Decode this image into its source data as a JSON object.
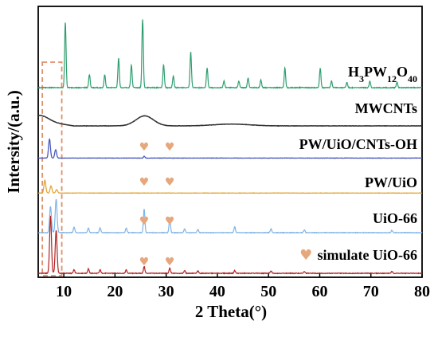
{
  "chart_data": {
    "type": "line",
    "title": "",
    "xlabel": "2 Theta(°)",
    "ylabel": "Intersity/(a.u.)",
    "xlim": [
      5,
      80
    ],
    "xticks": [
      10,
      20,
      30,
      40,
      50,
      60,
      70,
      80
    ],
    "y_ticks_shown": false,
    "marker_symbol": "♥",
    "marker_color": "#E6A77D",
    "highlight_box_color": "#E08F6A",
    "highlight_x_range": [
      5.8,
      9.6
    ],
    "series": [
      {
        "name": "simulate UiO-66",
        "label_color": "#D98B5F",
        "color": "#B22222",
        "baseline": 0.0,
        "peaks": [
          [
            7.4,
            1.0
          ],
          [
            8.5,
            0.75
          ],
          [
            12.0,
            0.06
          ],
          [
            14.8,
            0.08
          ],
          [
            17.1,
            0.06
          ],
          [
            22.2,
            0.06
          ],
          [
            25.7,
            0.12
          ],
          [
            30.7,
            0.09
          ],
          [
            33.6,
            0.05
          ],
          [
            36.2,
            0.04
          ],
          [
            43.4,
            0.05
          ],
          [
            50.5,
            0.04
          ],
          [
            57.0,
            0.03
          ],
          [
            74.1,
            0.03
          ]
        ],
        "markers": [
          25.7,
          30.7
        ]
      },
      {
        "name": "UiO-66",
        "label_color": "#000000",
        "color": "#7FB3E6",
        "baseline": 0.0,
        "peaks": [
          [
            7.4,
            0.55
          ],
          [
            8.5,
            0.7
          ],
          [
            12.0,
            0.12
          ],
          [
            14.8,
            0.1
          ],
          [
            17.1,
            0.1
          ],
          [
            22.2,
            0.1
          ],
          [
            25.7,
            0.5
          ],
          [
            30.7,
            0.3
          ],
          [
            33.6,
            0.08
          ],
          [
            36.2,
            0.07
          ],
          [
            43.4,
            0.12
          ],
          [
            50.5,
            0.08
          ],
          [
            57.0,
            0.06
          ],
          [
            74.1,
            0.05
          ]
        ],
        "markers": [
          25.7,
          30.7
        ]
      },
      {
        "name": "PW/UiO",
        "label_color": "#000000",
        "color": "#E0A02B",
        "baseline": 0.02,
        "peaks": [
          [
            6.3,
            0.45
          ],
          [
            7.5,
            0.25
          ],
          [
            8.6,
            0.12
          ]
        ],
        "markers": [
          25.7,
          30.7
        ]
      },
      {
        "name": "PW/UiO/CNTs-OH",
        "label_color": "#000000",
        "color": "#4B5BBF",
        "baseline": 0.02,
        "peaks": [
          [
            7.2,
            0.8
          ],
          [
            8.4,
            0.35
          ],
          [
            25.7,
            0.08
          ]
        ],
        "markers": [
          25.7,
          30.7
        ]
      },
      {
        "name": "MWCNTs",
        "label_color": "#000000",
        "color": "#333333",
        "baseline": 0.0,
        "peaks": [
          [
            5.5,
            0.25
          ],
          [
            25.8,
            0.45
          ],
          [
            42.8,
            0.08
          ]
        ],
        "markers": []
      },
      {
        "name": "H3PW12O40",
        "label_color": "#000000",
        "color": "#2E9E6E",
        "baseline": 0.0,
        "peaks": [
          [
            10.3,
            1.0
          ],
          [
            15.0,
            0.2
          ],
          [
            18.0,
            0.2
          ],
          [
            20.7,
            0.45
          ],
          [
            23.2,
            0.35
          ],
          [
            25.4,
            1.05
          ],
          [
            29.5,
            0.35
          ],
          [
            31.4,
            0.18
          ],
          [
            34.8,
            0.55
          ],
          [
            38.0,
            0.3
          ],
          [
            41.3,
            0.1
          ],
          [
            44.2,
            0.1
          ],
          [
            46.0,
            0.15
          ],
          [
            48.5,
            0.12
          ],
          [
            53.2,
            0.3
          ],
          [
            60.1,
            0.3
          ],
          [
            62.3,
            0.1
          ],
          [
            65.3,
            0.08
          ],
          [
            69.8,
            0.1
          ],
          [
            75.1,
            0.08
          ]
        ],
        "markers": []
      }
    ]
  }
}
